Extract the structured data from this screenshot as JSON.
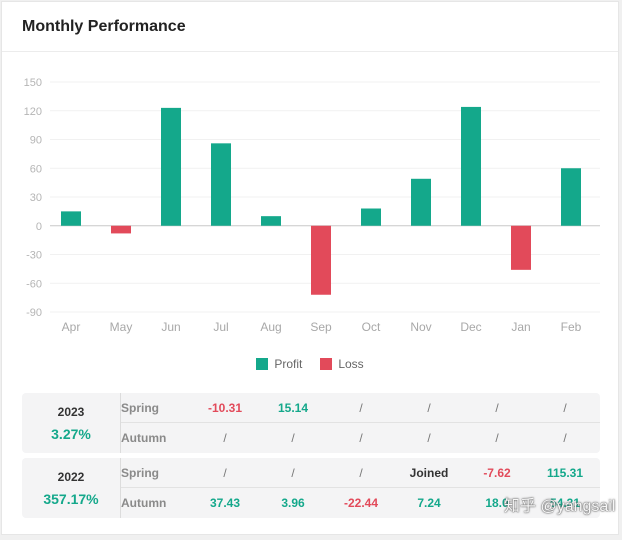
{
  "header": {
    "title": "Monthly Performance"
  },
  "chart_data": {
    "type": "bar",
    "categories": [
      "Apr",
      "May",
      "Jun",
      "Jul",
      "Aug",
      "Sep",
      "Oct",
      "Nov",
      "Dec",
      "Jan",
      "Feb"
    ],
    "values": [
      15,
      -8,
      123,
      86,
      10,
      -72,
      18,
      49,
      124,
      -46,
      60
    ],
    "yticks": [
      150,
      120,
      90,
      60,
      30,
      0,
      -30,
      -60,
      -90
    ],
    "ylim": [
      -90,
      150
    ],
    "title": "",
    "xlabel": "",
    "ylabel": "",
    "grid": true,
    "legend_position": "bottom-center",
    "legend": [
      {
        "name": "Profit",
        "color": "#14a88b"
      },
      {
        "name": "Loss",
        "color": "#e24a5a"
      }
    ]
  },
  "yearly": [
    {
      "year": "2023",
      "total": "3.27%",
      "rows": [
        {
          "season": "Spring",
          "cells": [
            "-10.31",
            "15.14",
            "/",
            "/",
            "/",
            "/"
          ]
        },
        {
          "season": "Autumn",
          "cells": [
            "/",
            "/",
            "/",
            "/",
            "/",
            "/"
          ]
        }
      ]
    },
    {
      "year": "2022",
      "total": "357.17%",
      "rows": [
        {
          "season": "Spring",
          "cells": [
            "/",
            "/",
            "/",
            "Joined",
            "-7.62",
            "115.31"
          ]
        },
        {
          "season": "Autumn",
          "cells": [
            "37.43",
            "3.96",
            "-22.44",
            "7.24",
            "18.0",
            "54.31"
          ]
        }
      ]
    }
  ],
  "watermark": "知乎 @yangsail"
}
